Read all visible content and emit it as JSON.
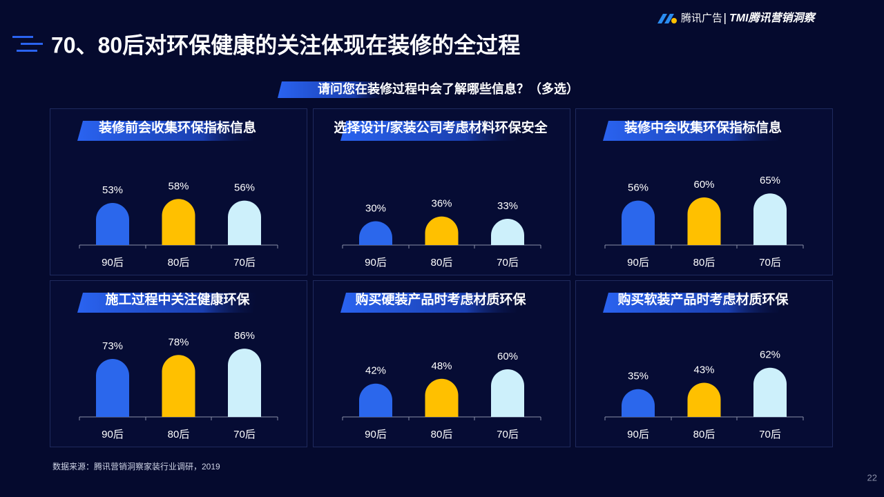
{
  "title": "70、80后对环保健康的关注体现在装修的全过程",
  "subtitle": "请问您在装修过程中会了解哪些信息？（多选）",
  "logo": {
    "brand": "腾讯广告",
    "product": "TMI腾讯营销洞察"
  },
  "source": "数据来源：腾讯营销洞察家装行业调研，2019",
  "page_number": 22,
  "chart_data": [
    {
      "type": "bar",
      "title": "装修前会收集环保指标信息",
      "categories": [
        "90后",
        "80后",
        "70后"
      ],
      "values": [
        53,
        58,
        56
      ],
      "value_labels": [
        "53%",
        "58%",
        "56%"
      ],
      "colors": [
        "#2b67ec",
        "#ffc000",
        "#cdf0fb"
      ]
    },
    {
      "type": "bar",
      "title": "选择设计/家装公司考虑材料环保安全",
      "categories": [
        "90后",
        "80后",
        "70后"
      ],
      "values": [
        30,
        36,
        33
      ],
      "value_labels": [
        "30%",
        "36%",
        "33%"
      ],
      "colors": [
        "#2b67ec",
        "#ffc000",
        "#cdf0fb"
      ]
    },
    {
      "type": "bar",
      "title": "装修中会收集环保指标信息",
      "categories": [
        "90后",
        "80后",
        "70后"
      ],
      "values": [
        56,
        60,
        65
      ],
      "value_labels": [
        "56%",
        "60%",
        "65%"
      ],
      "colors": [
        "#2b67ec",
        "#ffc000",
        "#cdf0fb"
      ]
    },
    {
      "type": "bar",
      "title": "施工过程中关注健康环保",
      "categories": [
        "90后",
        "80后",
        "70后"
      ],
      "values": [
        73,
        78,
        86
      ],
      "value_labels": [
        "73%",
        "78%",
        "86%"
      ],
      "colors": [
        "#2b67ec",
        "#ffc000",
        "#cdf0fb"
      ]
    },
    {
      "type": "bar",
      "title": "购买硬装产品时考虑材质环保",
      "categories": [
        "90后",
        "80后",
        "70后"
      ],
      "values": [
        42,
        48,
        60
      ],
      "value_labels": [
        "42%",
        "48%",
        "60%"
      ],
      "colors": [
        "#2b67ec",
        "#ffc000",
        "#cdf0fb"
      ]
    },
    {
      "type": "bar",
      "title": "购买软装产品时考虑材质环保",
      "categories": [
        "90后",
        "80后",
        "70后"
      ],
      "values": [
        35,
        43,
        62
      ],
      "value_labels": [
        "35%",
        "43%",
        "62%"
      ],
      "colors": [
        "#2b67ec",
        "#ffc000",
        "#cdf0fb"
      ]
    }
  ]
}
